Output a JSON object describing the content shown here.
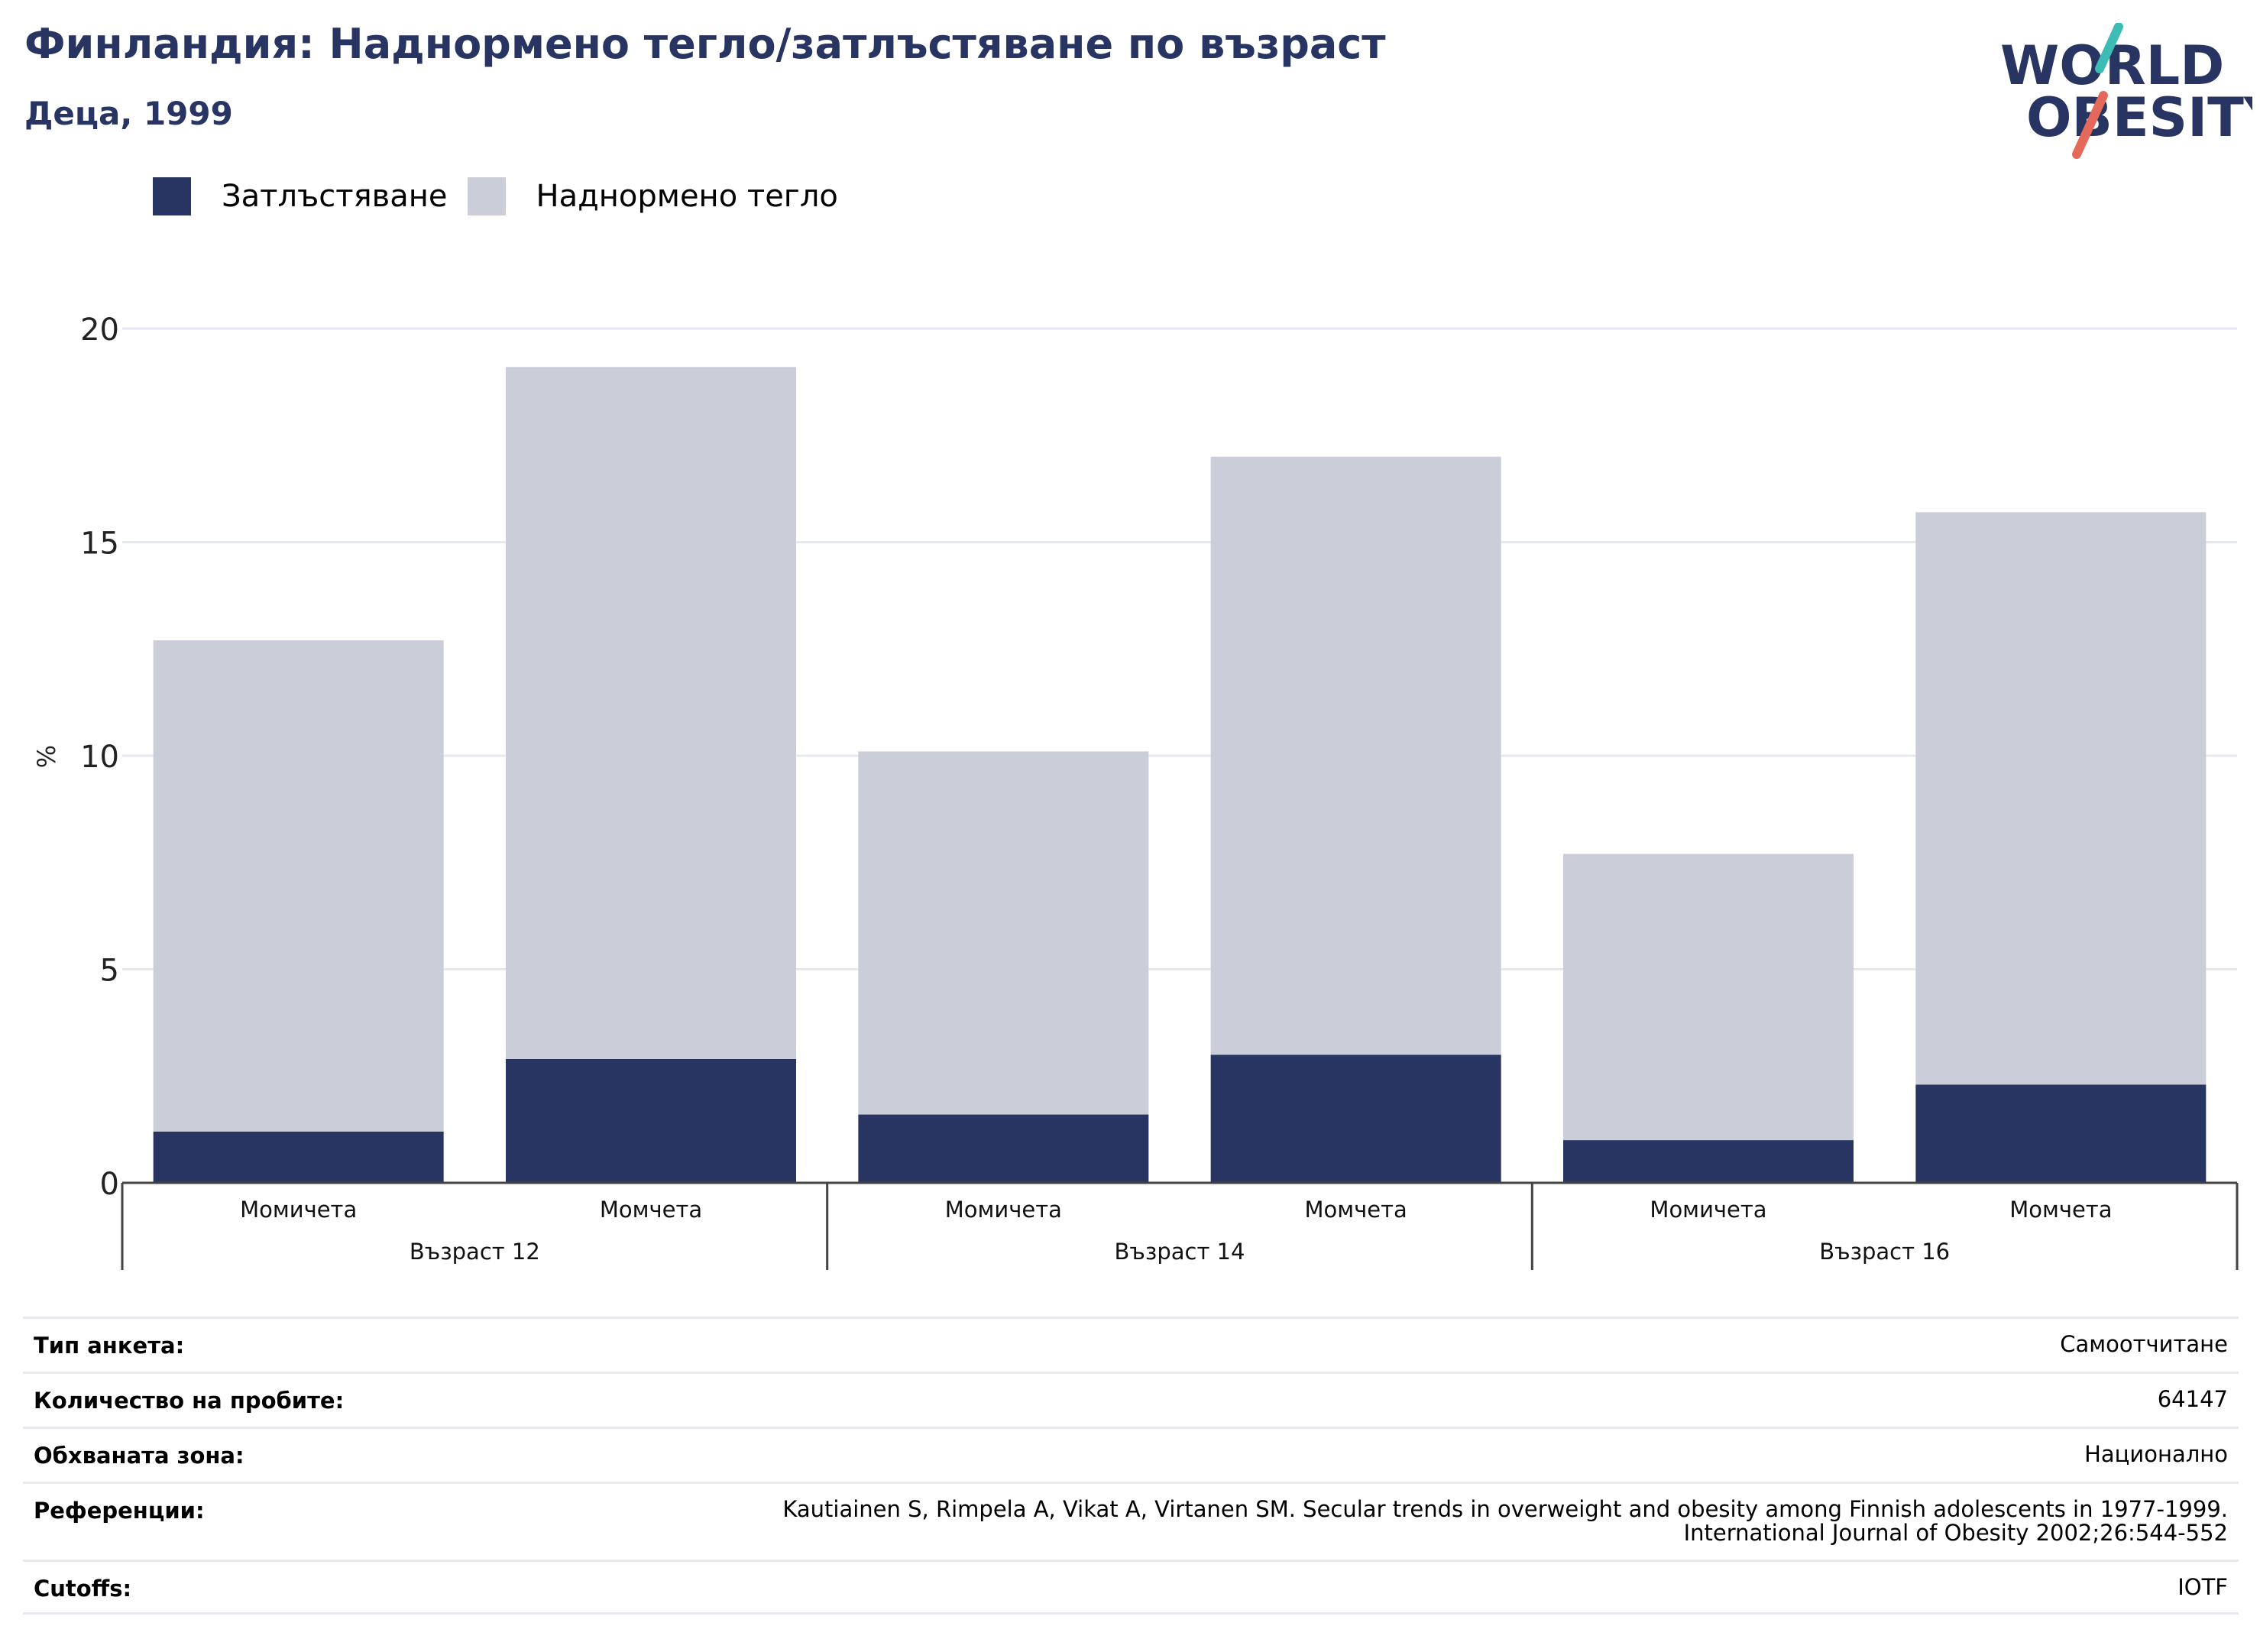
{
  "header": {
    "title": "Финландия: Наднормено тегло/затлъстяване по възраст",
    "subtitle": "Деца, 1999"
  },
  "logo": {
    "line1": "WORLD",
    "line2": "OBESITY"
  },
  "colors": {
    "obesity": "#283562",
    "overweight": "#cbcdd9",
    "title": "#283562",
    "logo_teal": "#3dbbb5",
    "logo_red": "#e5695a"
  },
  "chart_data": {
    "type": "bar",
    "stacked": true,
    "ylabel": "%",
    "ylim": [
      0,
      20
    ],
    "yticks": [
      0,
      5,
      10,
      15,
      20
    ],
    "grid": true,
    "legend_position": "top-left",
    "categories": [
      "Момичета",
      "Момчета",
      "Момичета",
      "Момчета",
      "Момичета",
      "Момчета"
    ],
    "groups": [
      {
        "label": "Възраст 12",
        "count": 2
      },
      {
        "label": "Възраст 14",
        "count": 2
      },
      {
        "label": "Възраст 16",
        "count": 2
      }
    ],
    "series": [
      {
        "name": "Затлъстяване",
        "values": [
          1.2,
          2.9,
          1.6,
          3.0,
          1.0,
          2.3
        ]
      },
      {
        "name": "Наднормено тегло",
        "values": [
          11.5,
          16.2,
          8.5,
          14.0,
          6.7,
          13.4
        ]
      }
    ]
  },
  "info": [
    {
      "key": "Тип анкета:",
      "value": "Самоотчитане"
    },
    {
      "key": "Количество на пробите:",
      "value": "64147"
    },
    {
      "key": "Обхваната зона:",
      "value": "Национално"
    },
    {
      "key": "Референции:",
      "value": "Kautiainen S, Rimpela A, Vikat A, Virtanen SM. Secular trends in overweight and obesity among Finnish adolescents in 1977-1999.",
      "value2": "International Journal of Obesity 2002;26:544-552"
    },
    {
      "key": "Cutoffs:",
      "value": "IOTF"
    }
  ]
}
